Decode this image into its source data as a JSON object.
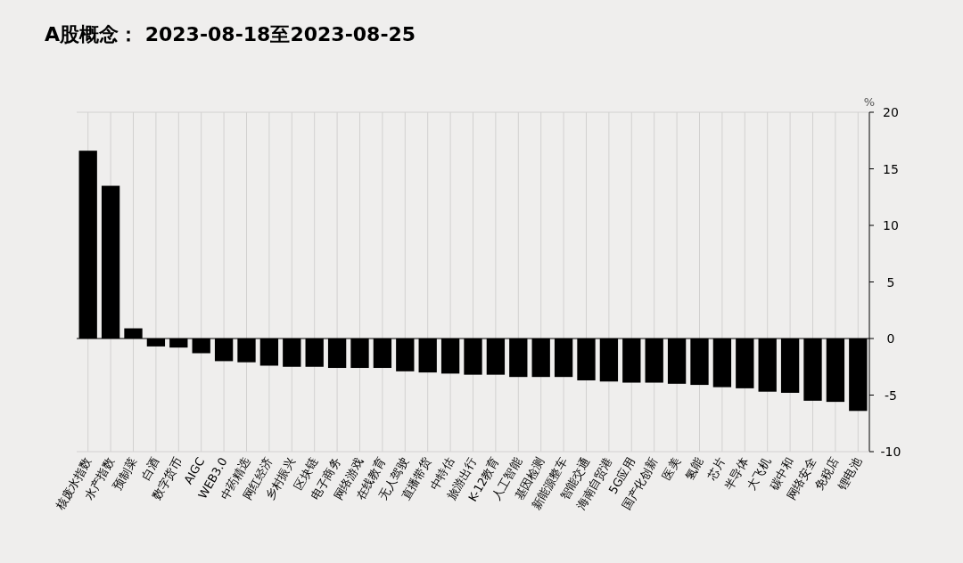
{
  "chart_data": {
    "type": "bar",
    "title": "A股概念： 2023-08-18至2023-08-25",
    "ylabel": "%",
    "categories": [
      "核废水指数",
      "水产指数",
      "预制菜",
      "白酒",
      "数字货币",
      "AIGC",
      "WEB3.0",
      "中药精选",
      "网红经济",
      "乡村振兴",
      "区块链",
      "电子商务",
      "网络游戏",
      "在线教育",
      "无人驾驶",
      "直播带货",
      "中特估",
      "旅游出行",
      "K-12教育",
      "人工智能",
      "基因检测",
      "新能源整车",
      "智能交通",
      "海南自贸港",
      "5G应用",
      "国产化创新",
      "医美",
      "氢能",
      "芯片",
      "半导体",
      "大飞机",
      "碳中和",
      "网络安全",
      "免税店",
      "锂电池"
    ],
    "values": [
      16.6,
      13.5,
      0.9,
      -0.7,
      -0.8,
      -1.3,
      -2.0,
      -2.1,
      -2.4,
      -2.5,
      -2.5,
      -2.6,
      -2.6,
      -2.6,
      -2.9,
      -3.0,
      -3.1,
      -3.2,
      -3.2,
      -3.4,
      -3.4,
      -3.4,
      -3.7,
      -3.8,
      -3.9,
      -3.9,
      -4.0,
      -4.1,
      -4.3,
      -4.4,
      -4.7,
      -4.8,
      -5.5,
      -5.6,
      -6.4
    ],
    "color": "#000000",
    "ylim": [
      -10,
      20
    ],
    "yticks": [
      -10,
      -5,
      0,
      5,
      10,
      15,
      20
    ],
    "grid": "x"
  }
}
